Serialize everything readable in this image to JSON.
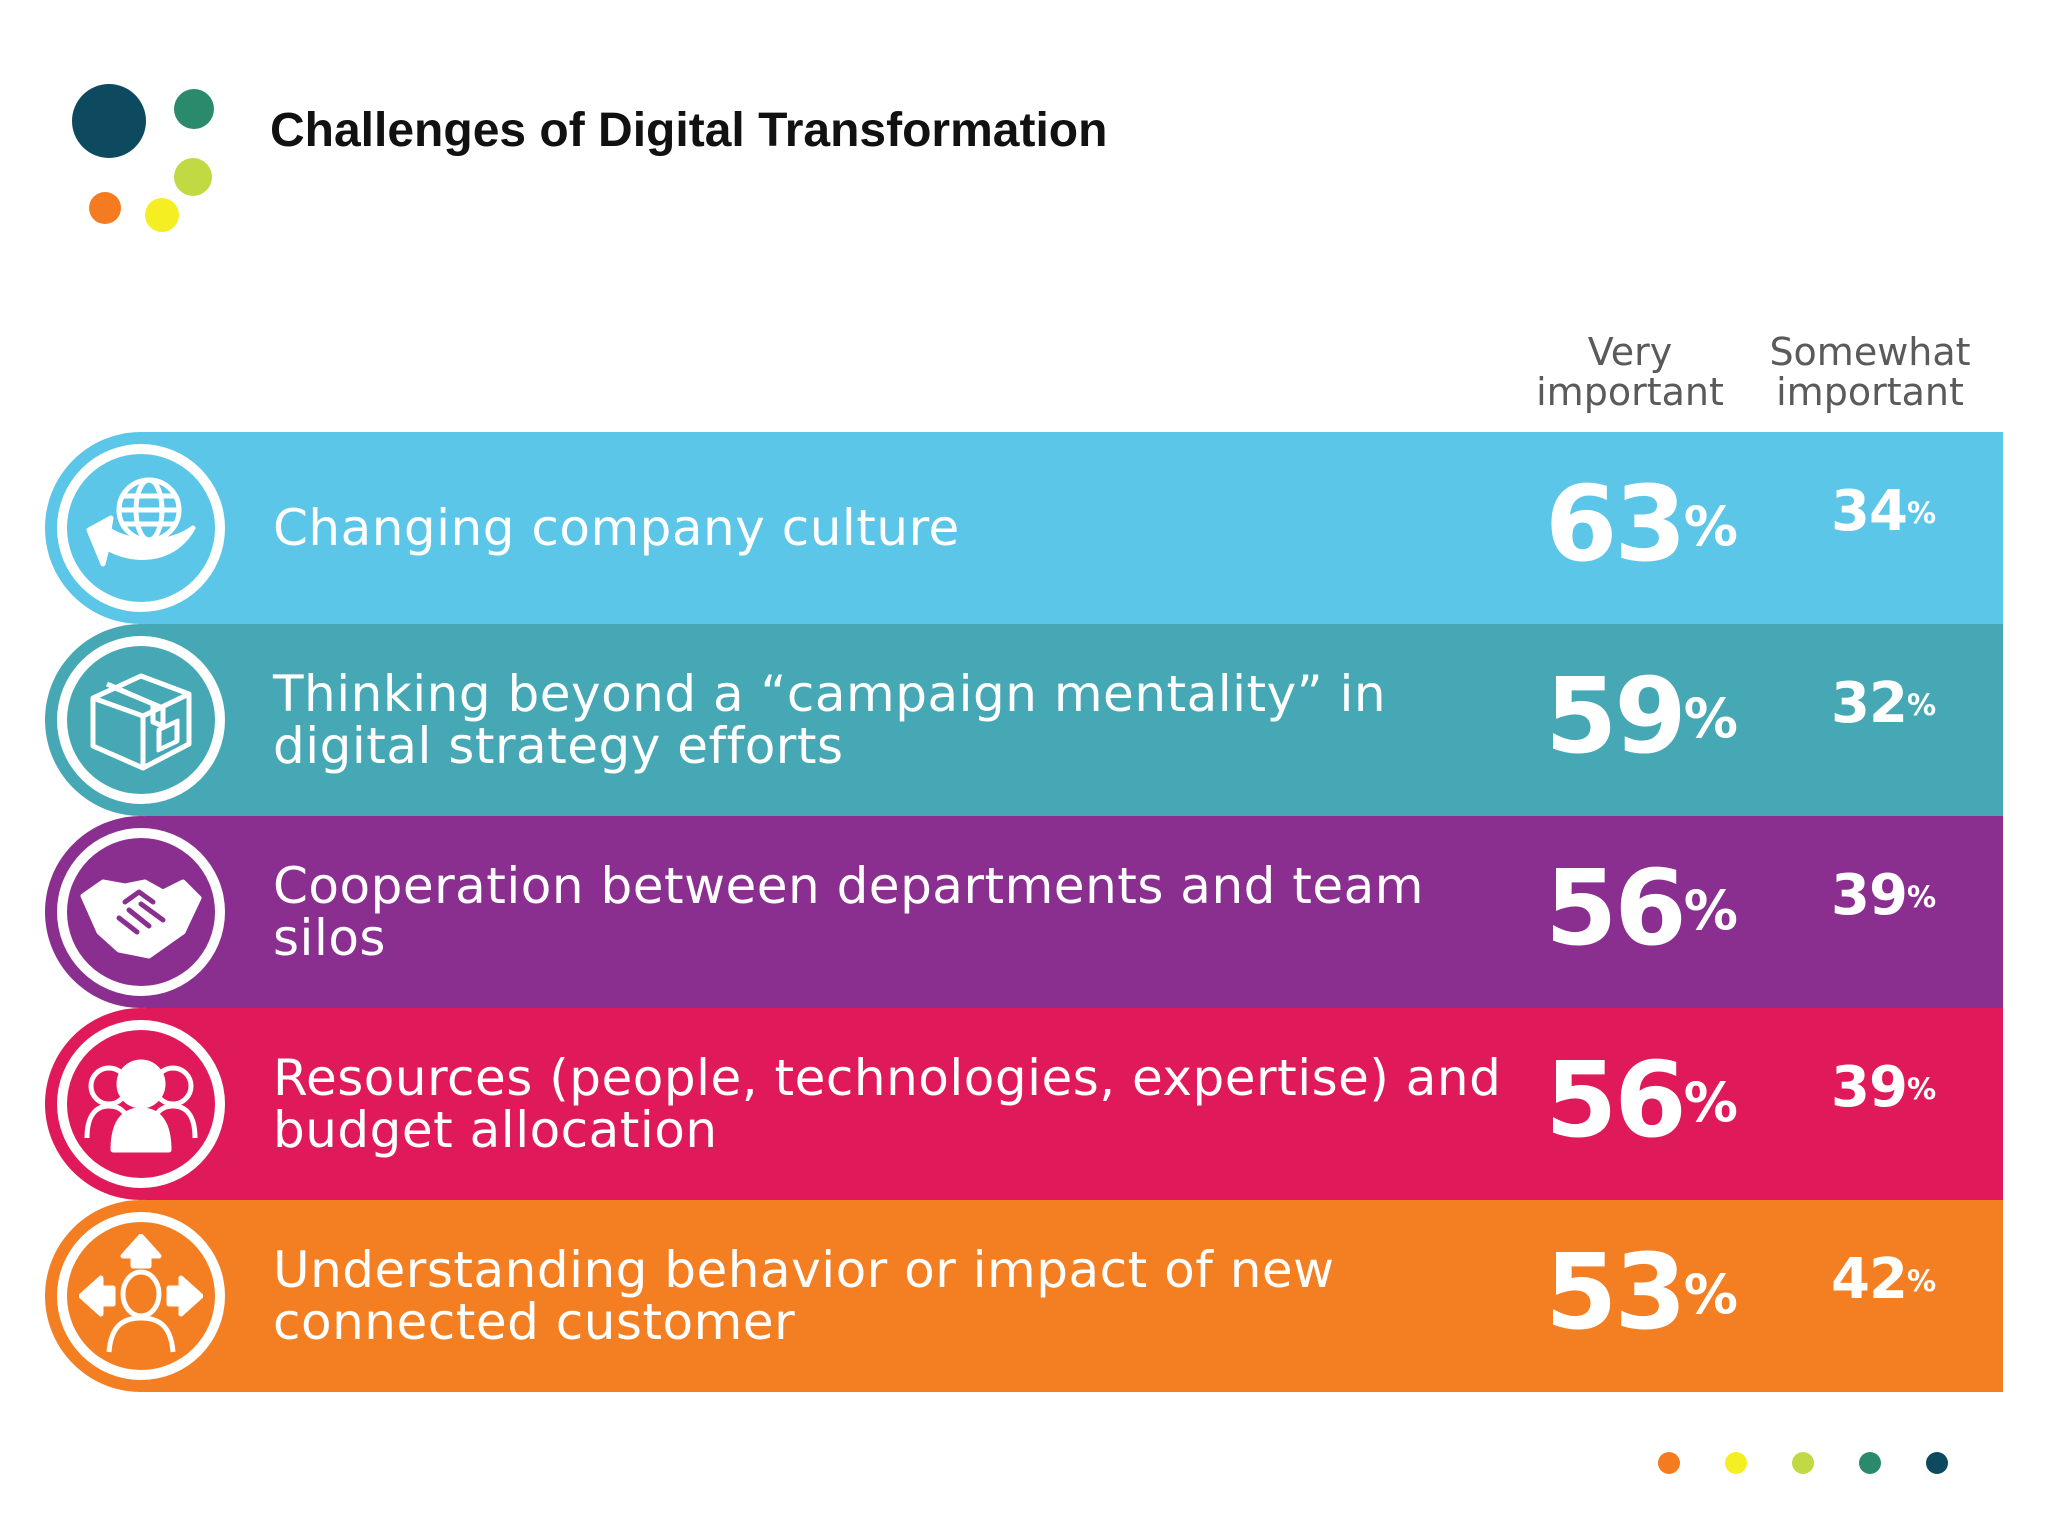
{
  "colors": {
    "logo_dark": "#0d4a5f",
    "logo_teal": "#2a8a6b",
    "logo_lime": "#c1d943",
    "logo_orange": "#f47b20",
    "logo_yellow": "#f4ee23",
    "row_colors": [
      "#5bc6e8",
      "#45a8b4",
      "#8a2e8f",
      "#e0195a",
      "#f47f22"
    ]
  },
  "chart_data": {
    "type": "table",
    "title": "Challenges of Digital Transformation",
    "columns": [
      "Very important",
      "Somewhat important"
    ],
    "column_headers": {
      "very": [
        "Very",
        "important"
      ],
      "somewhat": [
        "Somewhat",
        "important"
      ]
    },
    "unit_symbol": "%",
    "rows": [
      {
        "label": "Changing company culture",
        "icon": "globe-arrow-icon",
        "very_important": 63,
        "somewhat_important": 34
      },
      {
        "label": "Thinking beyond a “campaign mentality” in digital strategy efforts",
        "icon": "box-icon",
        "very_important": 59,
        "somewhat_important": 32
      },
      {
        "label": "Cooperation between departments and team silos",
        "icon": "handshake-icon",
        "very_important": 56,
        "somewhat_important": 39
      },
      {
        "label": "Resources (people, technologies, expertise) and budget allocation",
        "icon": "people-group-icon",
        "very_important": 56,
        "somewhat_important": 39
      },
      {
        "label": "Understanding behavior or impact of new connected customer",
        "icon": "person-arrows-icon",
        "very_important": 53,
        "somewhat_important": 42
      }
    ]
  },
  "footer": {
    "nav_dot_colors": [
      "#f47b20",
      "#f4ee23",
      "#c1d943",
      "#2a8a6b",
      "#0d4a5f"
    ]
  }
}
